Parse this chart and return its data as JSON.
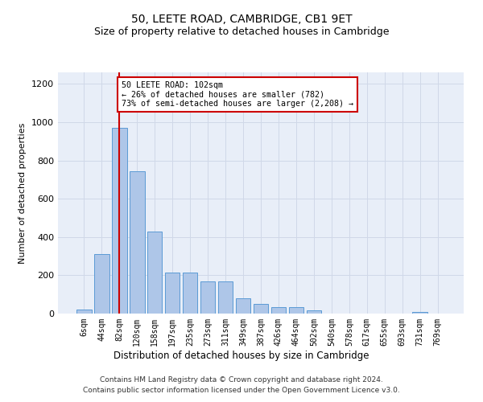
{
  "title": "50, LEETE ROAD, CAMBRIDGE, CB1 9ET",
  "subtitle": "Size of property relative to detached houses in Cambridge",
  "xlabel": "Distribution of detached houses by size in Cambridge",
  "ylabel": "Number of detached properties",
  "footnote1": "Contains HM Land Registry data © Crown copyright and database right 2024.",
  "footnote2": "Contains public sector information licensed under the Open Government Licence v3.0.",
  "bar_labels": [
    "6sqm",
    "44sqm",
    "82sqm",
    "120sqm",
    "158sqm",
    "197sqm",
    "235sqm",
    "273sqm",
    "311sqm",
    "349sqm",
    "387sqm",
    "426sqm",
    "464sqm",
    "502sqm",
    "540sqm",
    "578sqm",
    "617sqm",
    "655sqm",
    "693sqm",
    "731sqm",
    "769sqm"
  ],
  "bar_values": [
    22,
    310,
    970,
    745,
    430,
    215,
    215,
    170,
    170,
    80,
    50,
    35,
    35,
    15,
    0,
    0,
    0,
    0,
    0,
    10,
    0
  ],
  "bar_color": "#aec6e8",
  "bar_edge_color": "#5b9bd5",
  "annotation_box_text": "50 LEETE ROAD: 102sqm\n← 26% of detached houses are smaller (782)\n73% of semi-detached houses are larger (2,208) →",
  "vline_x": 2,
  "vline_color": "#cc0000",
  "ylim": [
    0,
    1260
  ],
  "yticks": [
    0,
    200,
    400,
    600,
    800,
    1000,
    1200
  ],
  "grid_color": "#d0d8e8",
  "background_color": "#e8eef8",
  "title_fontsize": 10,
  "subtitle_fontsize": 9
}
